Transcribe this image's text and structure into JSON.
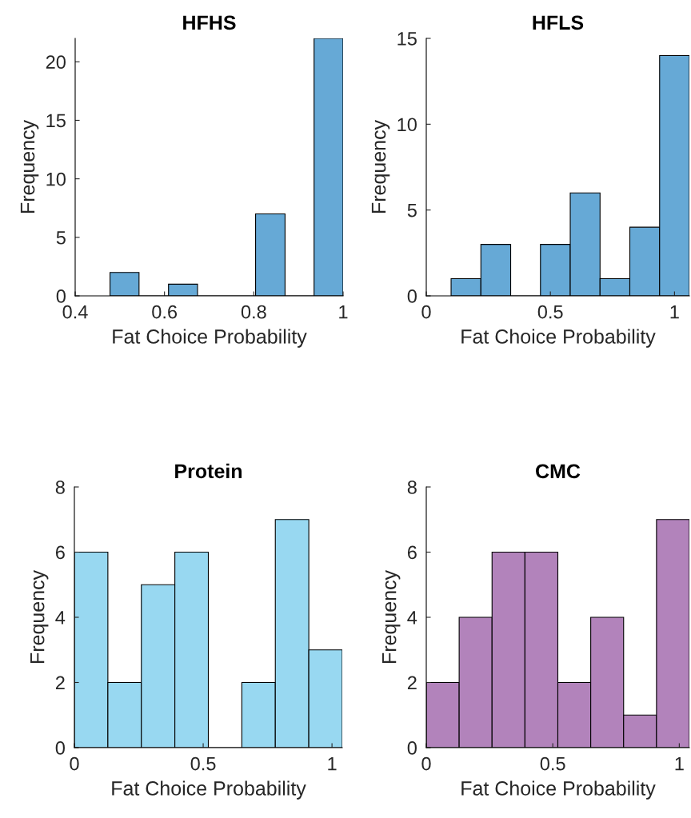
{
  "chart_data": [
    {
      "type": "histogram",
      "title": "HFHS",
      "xlabel": "Fat Choice Probability",
      "ylabel": "Frequency",
      "color": "#66a9d6",
      "bins": [
        0.478,
        0.543,
        0.609,
        0.674,
        0.804,
        0.87,
        0.935,
        1.0
      ],
      "values": [
        2,
        0,
        1,
        0,
        7,
        0,
        22
      ],
      "xlim": [
        0.4,
        1.0
      ],
      "xticks": [
        0.4,
        0.6,
        0.8,
        1
      ],
      "ylim": [
        0,
        22
      ],
      "yticks": [
        0,
        5,
        10,
        15,
        20
      ]
    },
    {
      "type": "histogram",
      "title": "HFLS",
      "xlabel": "Fat Choice Probability",
      "ylabel": "Frequency",
      "color": "#66a9d6",
      "bins": [
        0.1,
        0.22,
        0.34,
        0.46,
        0.58,
        0.7,
        0.82,
        0.94,
        1.06
      ],
      "values": [
        1,
        3,
        0,
        3,
        6,
        1,
        4,
        14
      ],
      "xlim": [
        0,
        1.06
      ],
      "xticks": [
        0,
        0.5,
        1
      ],
      "ylim": [
        0,
        15
      ],
      "yticks": [
        0,
        5,
        10,
        15
      ]
    },
    {
      "type": "histogram",
      "title": "Protein",
      "xlabel": "Fat Choice Probability",
      "ylabel": "Frequency",
      "color": "#98d8f1",
      "bins": [
        0,
        0.13,
        0.26,
        0.39,
        0.52,
        0.65,
        0.78,
        0.91,
        1.04
      ],
      "values": [
        6,
        2,
        5,
        6,
        0,
        2,
        7,
        3
      ],
      "xlim": [
        0,
        1.04
      ],
      "xticks": [
        0,
        0.5,
        1
      ],
      "ylim": [
        0,
        8
      ],
      "yticks": [
        0,
        2,
        4,
        6,
        8
      ]
    },
    {
      "type": "histogram",
      "title": "CMC",
      "xlabel": "Fat Choice Probability",
      "ylabel": "Frequency",
      "color": "#b283bb",
      "bins": [
        0,
        0.13,
        0.26,
        0.39,
        0.52,
        0.65,
        0.78,
        0.91,
        1.04
      ],
      "values": [
        2,
        4,
        6,
        6,
        2,
        4,
        1,
        7
      ],
      "xlim": [
        0,
        1.04
      ],
      "xticks": [
        0,
        0.5,
        1
      ],
      "ylim": [
        0,
        8
      ],
      "yticks": [
        0,
        2,
        4,
        6,
        8
      ]
    }
  ]
}
